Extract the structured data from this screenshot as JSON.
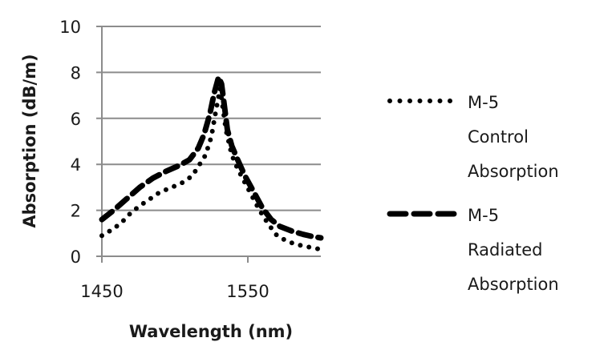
{
  "chart_data": {
    "type": "line",
    "title": "",
    "xlabel": "Wavelength (nm)",
    "ylabel": "Absorption (dB/m)",
    "xlim": [
      1450,
      1600
    ],
    "ylim": [
      0,
      10
    ],
    "x_ticks": [
      1450,
      1550
    ],
    "x_tick_labels": [
      "1450",
      "1550"
    ],
    "y_ticks": [
      0,
      2,
      4,
      6,
      8,
      10
    ],
    "y_tick_labels": [
      "0",
      "2",
      "4",
      "6",
      "8",
      "10"
    ],
    "grid": {
      "horizontal": true,
      "vertical": false
    },
    "legend_position": "right",
    "series": [
      {
        "name": "M-5 Control Absorption",
        "legend_lines": [
          "M-5",
          "Control",
          "Absorption"
        ],
        "style": "dotted",
        "color": "#000000",
        "x": [
          1450,
          1458,
          1464,
          1470,
          1476,
          1483,
          1490,
          1498,
          1505,
          1512,
          1517,
          1521,
          1525,
          1528,
          1531,
          1535,
          1539,
          1543,
          1548,
          1553,
          1558,
          1564,
          1570,
          1577,
          1584,
          1592,
          1600
        ],
        "values": [
          0.9,
          1.2,
          1.5,
          1.9,
          2.2,
          2.5,
          2.8,
          3.0,
          3.2,
          3.5,
          4.0,
          4.4,
          5.2,
          6.3,
          7.3,
          5.5,
          4.4,
          3.8,
          3.2,
          2.6,
          2.0,
          1.4,
          0.9,
          0.65,
          0.5,
          0.4,
          0.3
        ]
      },
      {
        "name": "M-5 Radiated Absorption",
        "legend_lines": [
          "M-5",
          "Radiated",
          "Absorption"
        ],
        "style": "dashed",
        "color": "#000000",
        "x": [
          1450,
          1458,
          1467,
          1476,
          1485,
          1494,
          1503,
          1510,
          1516,
          1520,
          1524,
          1527,
          1530,
          1532,
          1534,
          1536,
          1539,
          1543,
          1548,
          1554,
          1560,
          1566,
          1572,
          1580,
          1588,
          1595,
          1600
        ],
        "values": [
          1.6,
          2.0,
          2.5,
          3.0,
          3.4,
          3.7,
          3.95,
          4.2,
          4.7,
          5.3,
          6.2,
          7.1,
          7.8,
          7.5,
          6.5,
          5.5,
          4.8,
          4.2,
          3.5,
          2.8,
          2.1,
          1.6,
          1.3,
          1.1,
          0.95,
          0.85,
          0.8
        ]
      }
    ]
  }
}
